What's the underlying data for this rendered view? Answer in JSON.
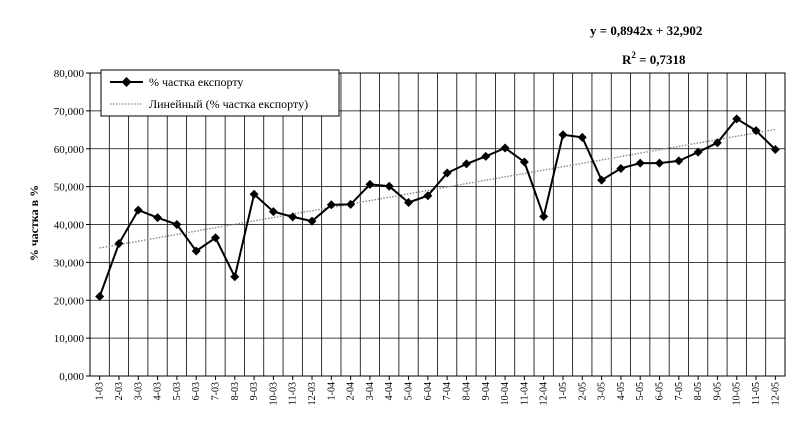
{
  "chart_data": {
    "type": "line",
    "ylabel": "% частка в %",
    "xlabel": "",
    "ylim": [
      0,
      80
    ],
    "yticks": [
      "0,000",
      "10,000",
      "20,000",
      "30,000",
      "40,000",
      "50,000",
      "60,000",
      "70,000",
      "80,000"
    ],
    "grid": true,
    "legend_position": "top-left",
    "categories": [
      "1-03",
      "2-03",
      "3-03",
      "4-03",
      "5-03",
      "6-03",
      "7-03",
      "8-03",
      "9-03",
      "10-03",
      "11-03",
      "12-03",
      "1-04",
      "2-04",
      "3-04",
      "4-04",
      "5-04",
      "6-04",
      "7-04",
      "8-04",
      "9-04",
      "10-04",
      "11-04",
      "12-04",
      "1-05",
      "2-05",
      "3-05",
      "4-05",
      "5-05",
      "6-05",
      "7-05",
      "8-05",
      "9-05",
      "10-05",
      "11-05",
      "12-05"
    ],
    "series": [
      {
        "name": "% частка експорту",
        "color": "#000000",
        "marker": "diamond",
        "values": [
          21.0,
          35.0,
          43.8,
          41.8,
          40.0,
          33.0,
          36.5,
          26.2,
          48.0,
          43.4,
          42.0,
          40.9,
          45.2,
          45.3,
          50.6,
          50.1,
          45.8,
          47.6,
          53.6,
          56.0,
          58.0,
          60.2,
          56.5,
          42.1,
          63.7,
          63.0,
          51.7,
          54.8,
          56.2,
          56.2,
          56.8,
          59.1,
          61.6,
          67.9,
          64.8,
          59.8
        ]
      }
    ],
    "trendline": {
      "name": "Линейный (% частка експорту)",
      "color": "#888888",
      "slope": 0.8942,
      "intercept": 32.902,
      "equation_text": "y = 0,8942x + 32,902",
      "r2_prefix": "R",
      "r2_sup": "2",
      "r2_value_text": " = 0,7318"
    }
  }
}
